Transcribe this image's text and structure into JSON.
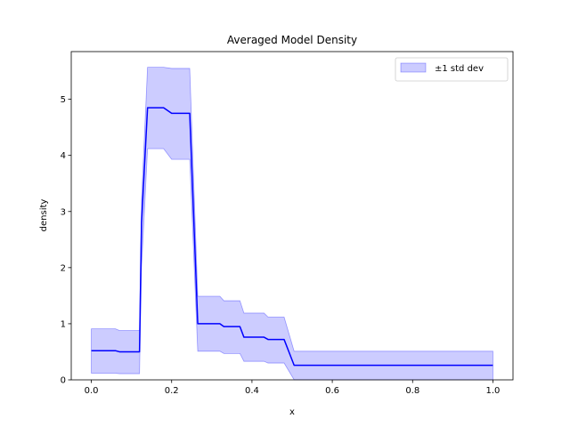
{
  "chart_data": {
    "type": "line",
    "title": "Averaged Model Density",
    "xlabel": "x",
    "ylabel": "density",
    "xlim": [
      -0.05,
      1.05
    ],
    "ylim": [
      0,
      5.85
    ],
    "grid": false,
    "legend_placement": "top-right",
    "x_ticks": [
      {
        "value": 0.0,
        "label": "0.0"
      },
      {
        "value": 0.2,
        "label": "0.2"
      },
      {
        "value": 0.4,
        "label": "0.4"
      },
      {
        "value": 0.6,
        "label": "0.6"
      },
      {
        "value": 0.8,
        "label": "0.8"
      },
      {
        "value": 1.0,
        "label": "1.0"
      }
    ],
    "y_ticks": [
      {
        "value": 0,
        "label": "0"
      },
      {
        "value": 1,
        "label": "1"
      },
      {
        "value": 2,
        "label": "2"
      },
      {
        "value": 3,
        "label": "3"
      },
      {
        "value": 4,
        "label": "4"
      },
      {
        "value": 5,
        "label": "5"
      }
    ],
    "series": [
      {
        "kind": "mean",
        "color": "#0000ff",
        "x": [
          0.0,
          0.06,
          0.07,
          0.12,
          0.125,
          0.14,
          0.18,
          0.2,
          0.245,
          0.265,
          0.32,
          0.33,
          0.37,
          0.38,
          0.43,
          0.44,
          0.48,
          0.505,
          1.0
        ],
        "y": [
          0.52,
          0.52,
          0.5,
          0.5,
          2.8,
          4.85,
          4.85,
          4.75,
          4.75,
          1.0,
          1.0,
          0.95,
          0.95,
          0.76,
          0.76,
          0.72,
          0.72,
          0.26,
          0.26
        ]
      },
      {
        "name": "±1 std dev",
        "kind": "band",
        "color": "#0000ff",
        "opacity": 0.2,
        "x": [
          0.0,
          0.06,
          0.07,
          0.12,
          0.125,
          0.14,
          0.18,
          0.2,
          0.245,
          0.265,
          0.32,
          0.33,
          0.37,
          0.38,
          0.43,
          0.44,
          0.48,
          0.505,
          1.0
        ],
        "upper": [
          0.91,
          0.91,
          0.88,
          0.88,
          3.2,
          5.57,
          5.57,
          5.55,
          5.55,
          1.49,
          1.49,
          1.41,
          1.41,
          1.19,
          1.19,
          1.12,
          1.12,
          0.51,
          0.51
        ],
        "lower": [
          0.12,
          0.12,
          0.11,
          0.11,
          2.0,
          4.12,
          4.12,
          3.93,
          3.93,
          0.51,
          0.51,
          0.47,
          0.47,
          0.33,
          0.33,
          0.3,
          0.3,
          0.0,
          0.0
        ]
      }
    ],
    "legend": [
      {
        "label": "±1 std dev",
        "swatch": "band"
      }
    ]
  }
}
